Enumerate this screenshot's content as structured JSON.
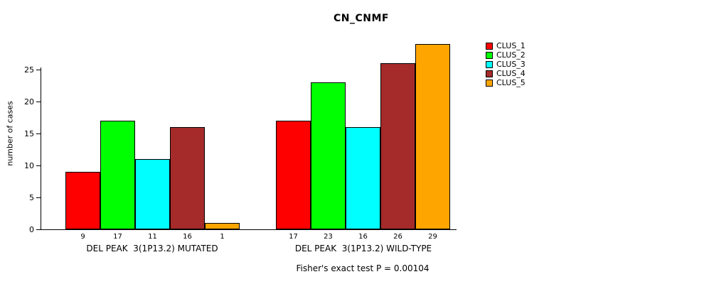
{
  "chart_data": {
    "type": "bar",
    "title": "CN_CNMF",
    "ylabel": "number of cases",
    "footer": "Fisher's exact test P = 0.00104",
    "yticks": [
      0,
      5,
      10,
      15,
      20,
      25
    ],
    "ylim": [
      0,
      29
    ],
    "grid": false,
    "legend_position": "right",
    "series": [
      {
        "name": "CLUS_1",
        "color": "#FF0000"
      },
      {
        "name": "CLUS_2",
        "color": "#00FF00"
      },
      {
        "name": "CLUS_3",
        "color": "#00FFFF"
      },
      {
        "name": "CLUS_4",
        "color": "#A52A2A"
      },
      {
        "name": "CLUS_5",
        "color": "#FFA500"
      }
    ],
    "groups": [
      {
        "label": "DEL PEAK  3(1P13.2) MUTATED",
        "values": [
          9,
          17,
          11,
          16,
          1
        ]
      },
      {
        "label": "DEL PEAK  3(1P13.2) WILD-TYPE",
        "values": [
          17,
          23,
          16,
          26,
          29
        ]
      }
    ]
  }
}
